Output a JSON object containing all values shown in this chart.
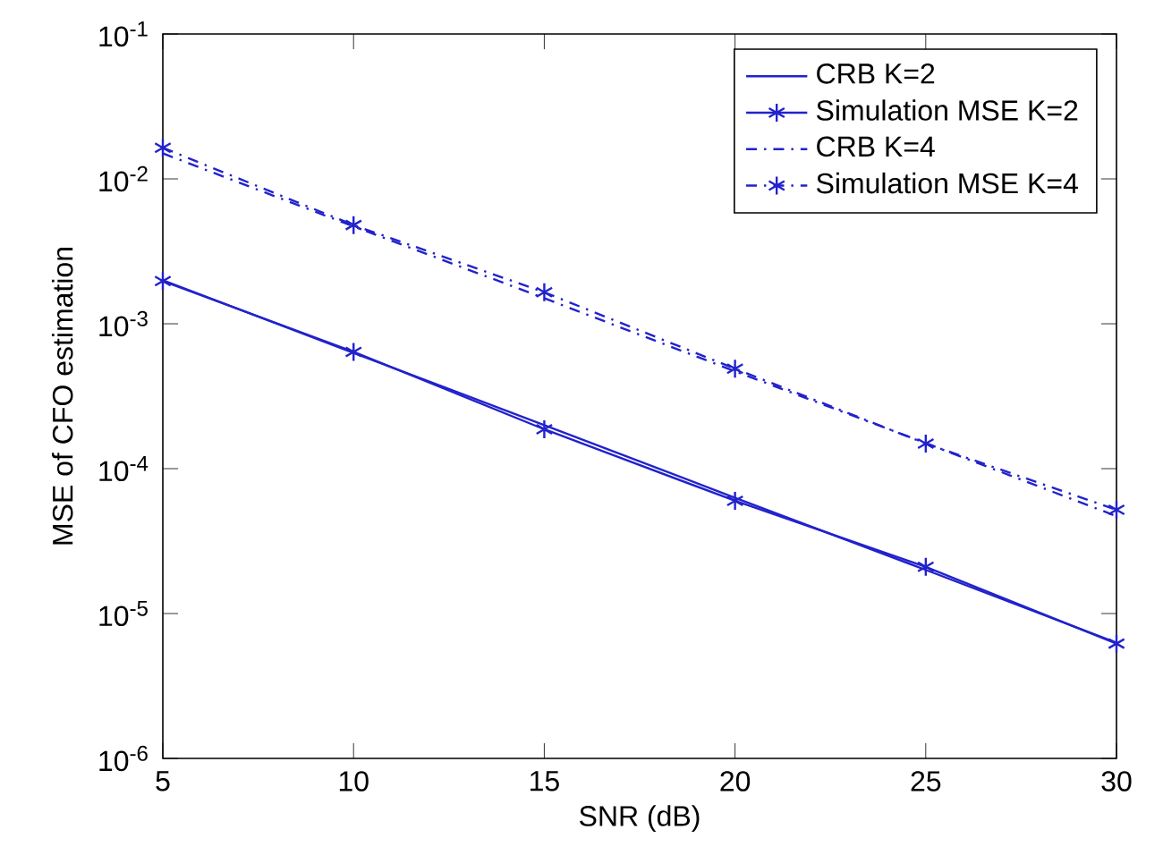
{
  "chart_data": {
    "type": "line",
    "xlabel": "SNR (dB)",
    "ylabel": "MSE of CFO estimation",
    "log": "y",
    "x": [
      5,
      10,
      15,
      20,
      25,
      30
    ],
    "series": [
      {
        "name": "CRB K=2",
        "color": "#2222cc",
        "values": [
          0.002,
          0.00063,
          0.0002,
          6.3e-05,
          2e-05,
          6.3e-06
        ],
        "marker": "none",
        "line_style": "solid"
      },
      {
        "name": "Simulation MSE K=2",
        "color": "#2222cc",
        "values": [
          0.00197,
          0.00064,
          0.000187,
          6e-05,
          2.1e-05,
          6.2e-06
        ],
        "marker": "cross",
        "line_style": "solid"
      },
      {
        "name": "CRB K=4",
        "color": "#2222cc",
        "values": [
          0.015,
          0.0047,
          0.0015,
          0.00047,
          0.00015,
          4.7e-05
        ],
        "marker": "none",
        "line_style": "dashdot"
      },
      {
        "name": "Simulation MSE K=4",
        "color": "#2222cc",
        "values": [
          0.0164,
          0.0048,
          0.00165,
          0.00049,
          0.000149,
          5.2e-05
        ],
        "marker": "cross",
        "line_style": "dashdot"
      }
    ],
    "xlim": [
      5,
      30
    ],
    "xticks": [
      5,
      10,
      15,
      20,
      25,
      30
    ],
    "ylim": [
      1e-06,
      0.1
    ],
    "yticks": [
      {
        "value": 1e-06,
        "label": "10$^{-6}$"
      },
      {
        "value": 1e-05,
        "label": "10$^{-5}$"
      },
      {
        "value": 0.0001,
        "label": "10$^{-4}$"
      },
      {
        "value": 0.001,
        "label": "10$^{-3}$"
      },
      {
        "value": 0.01,
        "label": "10$^{-2}$"
      },
      {
        "value": 0.1,
        "label": "10$^{-1}$"
      }
    ],
    "grid": false,
    "legend": "top right"
  }
}
